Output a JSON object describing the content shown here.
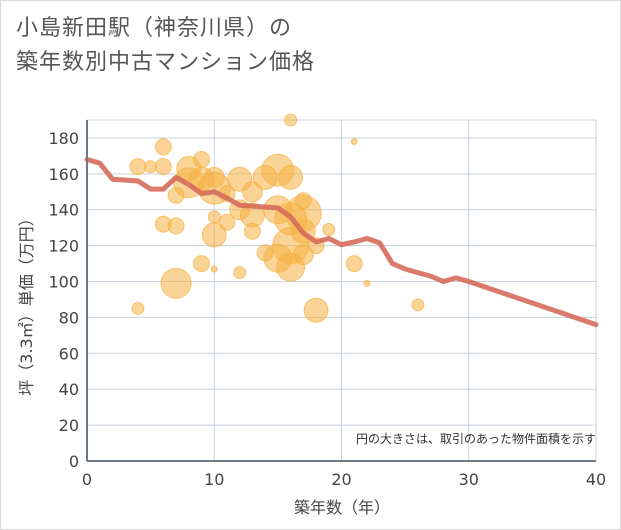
{
  "title_line1": "小島新田駅（神奈川県）の",
  "title_line2": "築年数別中古マンション価格",
  "chart_data": {
    "type": "scatter",
    "xlabel": "築年数（年）",
    "ylabel": "坪（3.3㎡）単価（万円）",
    "note": "円の大きさは、取引のあった物件面積を示す",
    "xlim": [
      0,
      40
    ],
    "ylim": [
      0,
      190
    ],
    "xticks": [
      0,
      10,
      20,
      30,
      40
    ],
    "yticks": [
      0,
      20,
      40,
      60,
      80,
      100,
      120,
      140,
      160,
      180
    ],
    "grid": true,
    "colors": {
      "bubble": "#f5b042",
      "line": "#d56c5a",
      "grid": "#c8d2dc",
      "axis": "#6b7a85"
    },
    "bubbles": [
      {
        "x": 4,
        "y": 164,
        "s": 8
      },
      {
        "x": 4,
        "y": 85,
        "s": 6
      },
      {
        "x": 5,
        "y": 164,
        "s": 6
      },
      {
        "x": 6,
        "y": 175,
        "s": 8
      },
      {
        "x": 6,
        "y": 164,
        "s": 8
      },
      {
        "x": 6,
        "y": 132,
        "s": 8
      },
      {
        "x": 7,
        "y": 148,
        "s": 8
      },
      {
        "x": 7,
        "y": 131,
        "s": 8
      },
      {
        "x": 7,
        "y": 99,
        "s": 15
      },
      {
        "x": 8,
        "y": 163,
        "s": 12
      },
      {
        "x": 8,
        "y": 155,
        "s": 15
      },
      {
        "x": 9,
        "y": 168,
        "s": 8
      },
      {
        "x": 9,
        "y": 157,
        "s": 12
      },
      {
        "x": 9,
        "y": 110,
        "s": 8
      },
      {
        "x": 10,
        "y": 158,
        "s": 10
      },
      {
        "x": 10,
        "y": 152,
        "s": 16
      },
      {
        "x": 10,
        "y": 136,
        "s": 6
      },
      {
        "x": 10,
        "y": 126,
        "s": 12
      },
      {
        "x": 10,
        "y": 107,
        "s": 3
      },
      {
        "x": 11,
        "y": 149,
        "s": 8
      },
      {
        "x": 11,
        "y": 133,
        "s": 8
      },
      {
        "x": 12,
        "y": 157,
        "s": 12
      },
      {
        "x": 12,
        "y": 140,
        "s": 10
      },
      {
        "x": 12,
        "y": 105,
        "s": 6
      },
      {
        "x": 13,
        "y": 150,
        "s": 10
      },
      {
        "x": 13,
        "y": 137,
        "s": 12
      },
      {
        "x": 13,
        "y": 128,
        "s": 8
      },
      {
        "x": 14,
        "y": 158,
        "s": 12
      },
      {
        "x": 14,
        "y": 116,
        "s": 8
      },
      {
        "x": 15,
        "y": 162,
        "s": 16
      },
      {
        "x": 15,
        "y": 140,
        "s": 14
      },
      {
        "x": 15,
        "y": 113,
        "s": 14
      },
      {
        "x": 16,
        "y": 190,
        "s": 6
      },
      {
        "x": 16,
        "y": 158,
        "s": 12
      },
      {
        "x": 16,
        "y": 135,
        "s": 16
      },
      {
        "x": 16,
        "y": 120,
        "s": 18
      },
      {
        "x": 16,
        "y": 108,
        "s": 14
      },
      {
        "x": 17,
        "y": 145,
        "s": 8
      },
      {
        "x": 17,
        "y": 138,
        "s": 18
      },
      {
        "x": 17,
        "y": 128,
        "s": 12
      },
      {
        "x": 17,
        "y": 115,
        "s": 10
      },
      {
        "x": 18,
        "y": 120,
        "s": 8
      },
      {
        "x": 18,
        "y": 84,
        "s": 12
      },
      {
        "x": 19,
        "y": 129,
        "s": 6
      },
      {
        "x": 21,
        "y": 178,
        "s": 3
      },
      {
        "x": 21,
        "y": 110,
        "s": 8
      },
      {
        "x": 22,
        "y": 99,
        "s": 3
      },
      {
        "x": 26,
        "y": 87,
        "s": 6
      }
    ],
    "trend": [
      {
        "x": 0,
        "y": 168
      },
      {
        "x": 1,
        "y": 166
      },
      {
        "x": 2,
        "y": 157
      },
      {
        "x": 3,
        "y": 156.5
      },
      {
        "x": 4,
        "y": 156
      },
      {
        "x": 5,
        "y": 151.5
      },
      {
        "x": 6,
        "y": 151.5
      },
      {
        "x": 7,
        "y": 158
      },
      {
        "x": 8,
        "y": 154
      },
      {
        "x": 9,
        "y": 149
      },
      {
        "x": 10,
        "y": 150
      },
      {
        "x": 11,
        "y": 146.5
      },
      {
        "x": 12,
        "y": 142.5
      },
      {
        "x": 13,
        "y": 142
      },
      {
        "x": 14,
        "y": 141.5
      },
      {
        "x": 15,
        "y": 141
      },
      {
        "x": 16,
        "y": 136
      },
      {
        "x": 17,
        "y": 127
      },
      {
        "x": 18,
        "y": 122
      },
      {
        "x": 19,
        "y": 124
      },
      {
        "x": 20,
        "y": 120.5
      },
      {
        "x": 21,
        "y": 122
      },
      {
        "x": 22,
        "y": 124
      },
      {
        "x": 23,
        "y": 121.5
      },
      {
        "x": 24,
        "y": 110
      },
      {
        "x": 25,
        "y": 107
      },
      {
        "x": 26,
        "y": 105
      },
      {
        "x": 27,
        "y": 103
      },
      {
        "x": 28,
        "y": 100
      },
      {
        "x": 29,
        "y": 102
      },
      {
        "x": 30,
        "y": 100
      },
      {
        "x": 40,
        "y": 76
      }
    ]
  }
}
